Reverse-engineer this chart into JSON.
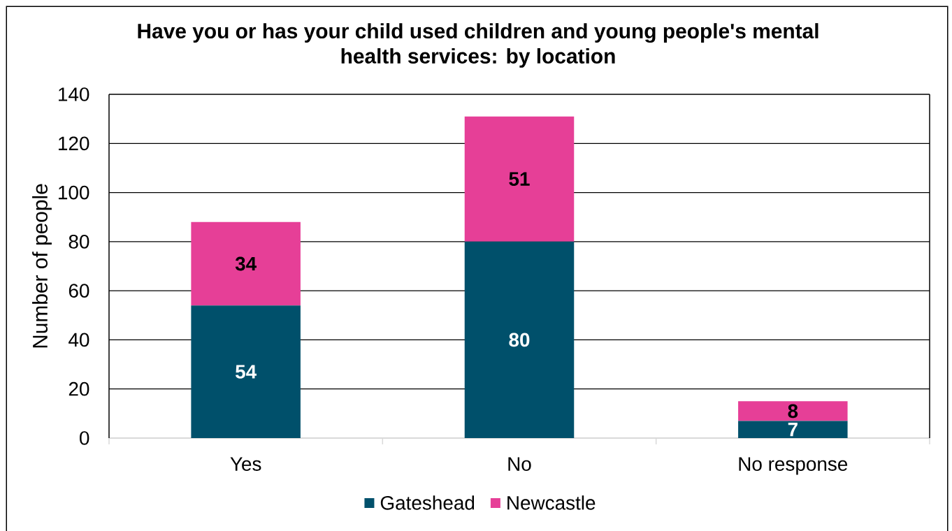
{
  "chart_data": {
    "type": "bar",
    "title": "Have you or has your child used children and young people's mental health services: by location",
    "ylabel": "Number of people",
    "categories": [
      "Yes",
      "No",
      "No response"
    ],
    "series": [
      {
        "name": "Gateshead",
        "color": "#00506b",
        "values": [
          54,
          80,
          7
        ]
      },
      {
        "name": "Newcastle",
        "color": "#e63f97",
        "values": [
          34,
          51,
          8
        ]
      }
    ],
    "stacked": true,
    "ylim": [
      0,
      140
    ],
    "yticks": [
      0,
      20,
      40,
      60,
      80,
      100,
      120,
      140
    ],
    "grid": "y",
    "legend": "bottom",
    "data_labels": true
  }
}
